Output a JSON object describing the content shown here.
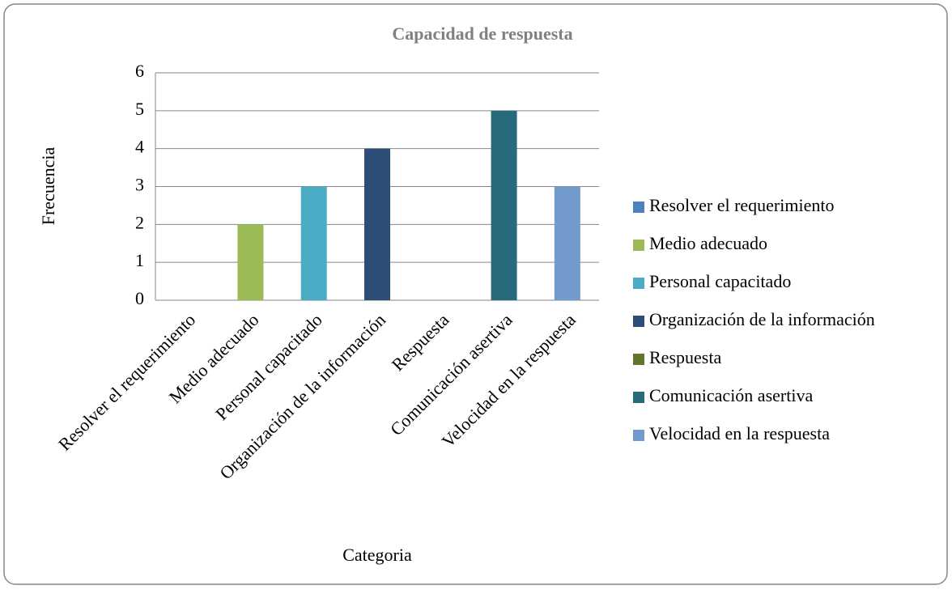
{
  "chart_data": {
    "type": "bar",
    "title": "Capacidad de respuesta",
    "x_label": "Categoria",
    "y_label": "Frecuencia",
    "categories": [
      "Resolver el requerimiento",
      "Medio adecuado",
      "Personal capacitado",
      "Organización de la información",
      "Respuesta",
      "Comunicación asertiva",
      "Velocidad en la respuesta"
    ],
    "values": [
      0,
      2,
      3,
      4,
      0,
      5,
      3
    ],
    "colors": [
      "#4f81bd",
      "#9bbb59",
      "#4bacc6",
      "#2c4d75",
      "#5f7530",
      "#276a7c",
      "#729aca"
    ],
    "ylim": [
      0,
      6
    ],
    "yticks": [
      0,
      1,
      2,
      3,
      4,
      5,
      6
    ],
    "grid": true,
    "legend": "right"
  }
}
